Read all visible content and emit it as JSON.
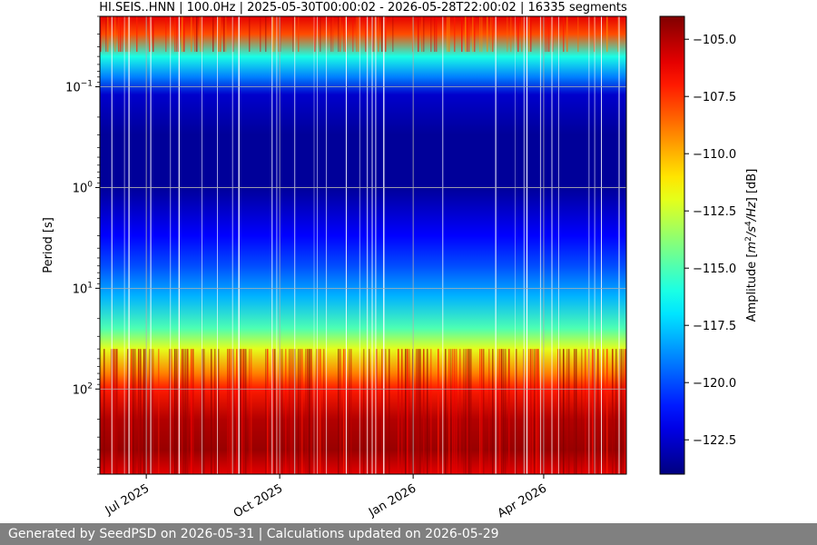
{
  "chart_data": {
    "type": "heatmap",
    "title": "HI.SEIS..HNN | 100.0Hz | 2025-05-30T00:00:02 - 2026-05-28T22:00:02 | 16335 segments",
    "ylabel": "Period [s]",
    "xlabel": "",
    "y_scale": "log",
    "y_inverted": true,
    "ylim": [
      0.02,
      700
    ],
    "xlim": [
      "2025-05-30",
      "2026-05-28"
    ],
    "x_ticks": [
      {
        "date": "2025-07-01",
        "label": "Jul 2025"
      },
      {
        "date": "2025-10-01",
        "label": "Oct 2025"
      },
      {
        "date": "2026-01-01",
        "label": "Jan 2026"
      },
      {
        "date": "2026-04-01",
        "label": "Apr 2026"
      }
    ],
    "y_ticks": [
      {
        "value": 0.1,
        "base": "10",
        "exp": "−1"
      },
      {
        "value": 1,
        "base": "10",
        "exp": "0"
      },
      {
        "value": 10,
        "base": "10",
        "exp": "1"
      },
      {
        "value": 100,
        "base": "10",
        "exp": "2"
      }
    ],
    "grid": true,
    "colormap": "jet",
    "colorbar": {
      "label_pre": "Amplitude [",
      "label_m": "m",
      "label_m_exp": "2",
      "label_s": "/s",
      "label_s_exp": "4",
      "label_hz": "/Hz",
      "label_post": "] [dB]",
      "range": [
        -124,
        -104
      ],
      "ticks": [
        "−105.0",
        "−107.5",
        "−110.0",
        "−112.5",
        "−115.0",
        "−117.5",
        "−120.0",
        "−122.5"
      ],
      "tick_values": [
        -105.0,
        -107.5,
        -110.0,
        -112.5,
        -115.0,
        -117.5,
        -120.0,
        -122.5
      ]
    },
    "amplitude_profile": [
      {
        "period": 0.02,
        "db": -106
      },
      {
        "period": 0.03,
        "db": -108
      },
      {
        "period": 0.05,
        "db": -116
      },
      {
        "period": 0.08,
        "db": -119
      },
      {
        "period": 0.12,
        "db": -122.5
      },
      {
        "period": 0.3,
        "db": -123.5
      },
      {
        "period": 1,
        "db": -123.5
      },
      {
        "period": 3,
        "db": -121.5
      },
      {
        "period": 6,
        "db": -120
      },
      {
        "period": 12,
        "db": -118
      },
      {
        "period": 25,
        "db": -115
      },
      {
        "period": 40,
        "db": -112
      },
      {
        "period": 70,
        "db": -109
      },
      {
        "period": 100,
        "db": -107
      },
      {
        "period": 200,
        "db": -105
      },
      {
        "period": 400,
        "db": -104.5
      },
      {
        "period": 700,
        "db": -106
      }
    ]
  },
  "footer": {
    "text": "Generated by SeedPSD on 2026-05-31 | Calculations updated on 2026-05-29"
  }
}
